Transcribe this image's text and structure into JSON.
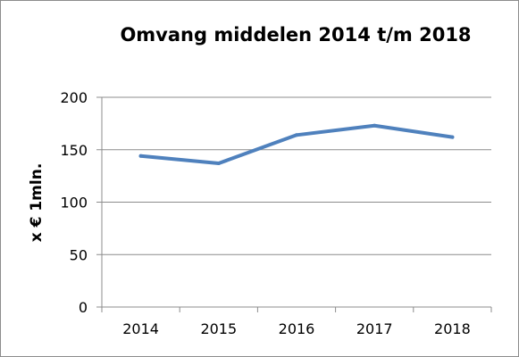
{
  "chart_data": {
    "type": "line",
    "title": "Omvang middelen 2014 t/m 2018",
    "xlabel": "",
    "ylabel": "x € 1mln.",
    "categories": [
      "2014",
      "2015",
      "2016",
      "2017",
      "2018"
    ],
    "series": [
      {
        "values": [
          144,
          137,
          164,
          173,
          162
        ],
        "color": "#4f81bd"
      }
    ],
    "ylim": [
      0,
      200
    ],
    "yticks": [
      0,
      50,
      100,
      150,
      200
    ],
    "grid": true,
    "legend": "none"
  }
}
